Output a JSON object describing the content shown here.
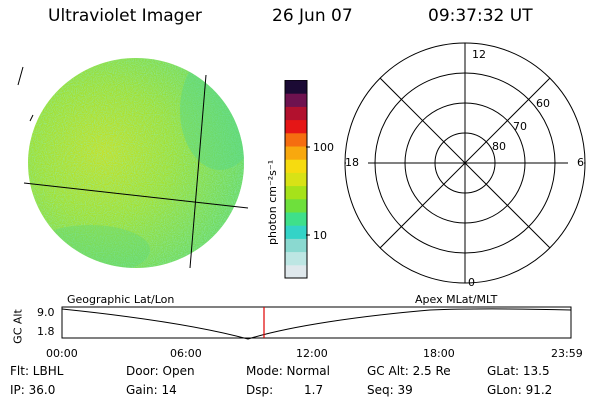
{
  "header": {
    "title": "Ultraviolet Imager",
    "date": "26 Jun 07",
    "time": "09:37:32 UT"
  },
  "colorbar": {
    "label": "photon cm⁻²s⁻¹",
    "ticks": [
      "100",
      "10"
    ],
    "colors": [
      "#dfe8ec",
      "#bde6e3",
      "#8ad9d0",
      "#34d3c7",
      "#3fe08a",
      "#6ee03c",
      "#a6e21a",
      "#d8e216",
      "#f6db10",
      "#f8a80e",
      "#f56d10",
      "#e51616",
      "#b2112e",
      "#6e124f",
      "#1b0a34"
    ]
  },
  "polar": {
    "mlt_labels": {
      "top": "12",
      "left": "18",
      "right": "6",
      "bottom": "0"
    },
    "lat_labels": [
      "60",
      "70",
      "80"
    ]
  },
  "timeline": {
    "ylabel": "GC Alt",
    "yticks": [
      "9.0",
      "1.8"
    ],
    "left_title": "Geographic Lat/Lon",
    "right_title": "Apex  MLat/MLT",
    "xticks": [
      "00:00",
      "06:00",
      "12:00",
      "18:00",
      "23:59"
    ]
  },
  "info": {
    "row1": {
      "filter": "Flt: LBHL",
      "door": "Door: Open",
      "mode": "Mode: Normal",
      "gc_alt": "GC Alt: 2.5 Re",
      "glat": "GLat:  13.5"
    },
    "row2": {
      "ip": "IP: 36.0",
      "gain": "Gain: 14",
      "dsp_label": "Dsp:",
      "dsp_value": "1.7",
      "seq": "Seq: 39",
      "glon": "GLon:  91.2"
    }
  },
  "colors": {
    "disk_base": "#9fe03a",
    "current_time_marker": "#e00000"
  }
}
